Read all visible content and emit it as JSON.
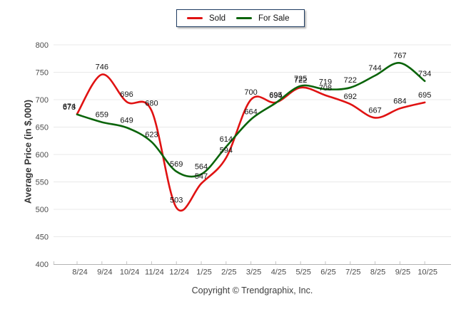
{
  "chart_data": {
    "type": "line",
    "title": "",
    "xlabel": "",
    "ylabel": "Average Price (in $,000)",
    "ylim": [
      400,
      800
    ],
    "ytick_step": 50,
    "grid": true,
    "legend_position": "top-center",
    "categories": [
      "8/24",
      "9/24",
      "10/24",
      "11/24",
      "12/24",
      "1/25",
      "2/25",
      "3/25",
      "4/25",
      "5/25",
      "6/25",
      "7/25",
      "8/25",
      "9/25",
      "10/25"
    ],
    "series": [
      {
        "name": "Sold",
        "color": "#e01212",
        "values": [
          674,
          746,
          696,
          680,
          503,
          547,
          594,
          700,
          695,
          722,
          708,
          692,
          667,
          684,
          695
        ]
      },
      {
        "name": "For Sale",
        "color": "#0a640a",
        "values": [
          673,
          659,
          649,
          623,
          569,
          564,
          614,
          664,
          694,
          725,
          719,
          722,
          744,
          767,
          734
        ]
      }
    ]
  },
  "footer": {
    "copyright": "Copyright © Trendgraphix, Inc."
  }
}
